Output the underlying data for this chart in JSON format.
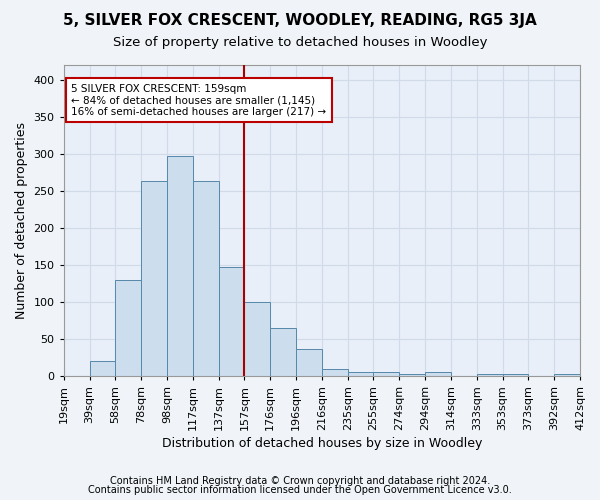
{
  "title": "5, SILVER FOX CRESCENT, WOODLEY, READING, RG5 3JA",
  "subtitle": "Size of property relative to detached houses in Woodley",
  "xlabel": "Distribution of detached houses by size in Woodley",
  "ylabel": "Number of detached properties",
  "footer_line1": "Contains HM Land Registry data © Crown copyright and database right 2024.",
  "footer_line2": "Contains public sector information licensed under the Open Government Licence v3.0.",
  "bin_labels": [
    "19sqm",
    "39sqm",
    "58sqm",
    "78sqm",
    "98sqm",
    "117sqm",
    "137sqm",
    "157sqm",
    "176sqm",
    "196sqm",
    "216sqm",
    "235sqm",
    "255sqm",
    "274sqm",
    "294sqm",
    "314sqm",
    "333sqm",
    "353sqm",
    "373sqm",
    "392sqm",
    "412sqm"
  ],
  "bar_values": [
    0,
    20,
    130,
    263,
    297,
    263,
    147,
    100,
    65,
    37,
    10,
    5,
    5,
    3,
    5,
    0,
    3,
    3,
    0,
    3
  ],
  "bar_color": "#ccdded",
  "bar_edge_color": "#5588aa",
  "vline_x": 7,
  "vline_color": "#aa0000",
  "annotation_text": "5 SILVER FOX CRESCENT: 159sqm\n← 84% of detached houses are smaller (1,145)\n16% of semi-detached houses are larger (217) →",
  "annotation_box_color": "#bb0000",
  "ylim": [
    0,
    420
  ],
  "yticks": [
    0,
    50,
    100,
    150,
    200,
    250,
    300,
    350,
    400
  ],
  "background_color": "#e8eff8",
  "grid_color": "#d0dae8",
  "title_fontsize": 11,
  "subtitle_fontsize": 9.5,
  "axis_label_fontsize": 9,
  "tick_fontsize": 8,
  "footer_fontsize": 7,
  "fig_bg": "#f0f4f8"
}
